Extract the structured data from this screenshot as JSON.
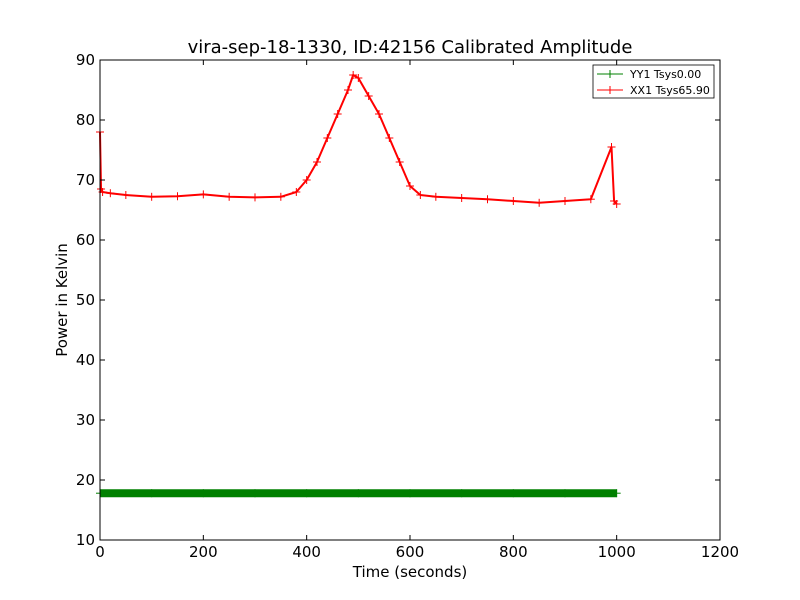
{
  "chart_data": {
    "type": "line",
    "title": "vira-sep-18-1330, ID:42156 Calibrated Amplitude",
    "xlabel": "Time (seconds)",
    "ylabel": "Power in Kelvin",
    "xlim": [
      0,
      1200
    ],
    "ylim": [
      10,
      90
    ],
    "xticks": [
      0,
      200,
      400,
      600,
      800,
      1000,
      1200
    ],
    "yticks": [
      10,
      20,
      30,
      40,
      50,
      60,
      70,
      80,
      90
    ],
    "grid": false,
    "legend_position": "top-right",
    "marker": "+",
    "series": [
      {
        "name": "YY1 Tsys0.00",
        "color": "#008000",
        "x": [
          0,
          100,
          200,
          300,
          400,
          500,
          600,
          700,
          800,
          900,
          1000
        ],
        "y": [
          17.8,
          17.8,
          17.8,
          17.8,
          17.8,
          17.8,
          17.8,
          17.8,
          17.8,
          17.8,
          17.8
        ]
      },
      {
        "name": "XX1 Tsys65.90",
        "color": "#ff0000",
        "x": [
          0,
          2,
          5,
          20,
          50,
          100,
          150,
          200,
          250,
          300,
          350,
          380,
          400,
          420,
          440,
          460,
          480,
          490,
          500,
          520,
          540,
          560,
          580,
          600,
          620,
          650,
          700,
          750,
          800,
          850,
          900,
          950,
          990,
          995,
          1000
        ],
        "y": [
          78,
          68.5,
          68,
          67.8,
          67.5,
          67.2,
          67.3,
          67.6,
          67.2,
          67.1,
          67.2,
          68,
          70,
          73,
          77,
          81,
          85,
          87.5,
          87,
          84,
          81,
          77,
          73,
          69,
          67.5,
          67.2,
          67,
          66.8,
          66.5,
          66.2,
          66.5,
          66.8,
          75.5,
          66.5,
          66
        ]
      }
    ]
  }
}
